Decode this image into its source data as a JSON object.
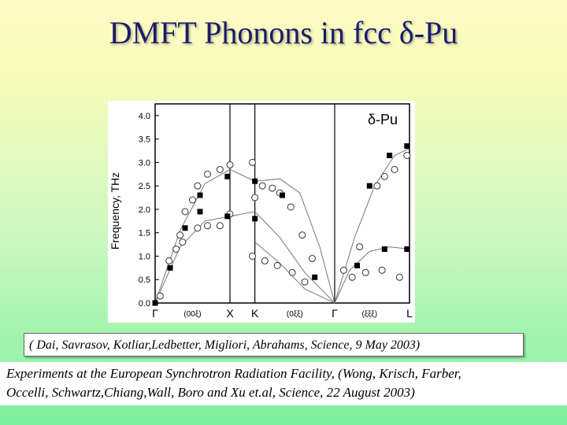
{
  "title": "DMFT  Phonons in fcc δ-Pu",
  "citation": "( Dai, Savrasov, Kotliar,Ledbetter, Migliori, Abrahams, Science, 9 May 2003)",
  "experiments": {
    "line1": "Experiments at the European Synchrotron Radiation Facility,  (Wong,  Krisch,  Farber,",
    "line2": " Occelli,  Schwartz,Chiang,Wall, Boro and  Xu et.al, Science, 22 August 2003)"
  },
  "chart_data": {
    "type": "scatter",
    "ylabel": "Frequency, THz",
    "ylim": [
      0,
      4.25
    ],
    "yticks": [
      "0.0",
      "0.5",
      "1.0",
      "1.5",
      "2.0",
      "2.5",
      "3.0",
      "3.5",
      "4.0"
    ],
    "legend_label": "δ-Pu",
    "xlim": [
      0,
      5.1
    ],
    "path_points": [
      {
        "label": "Γ",
        "x": 0.0
      },
      {
        "label": "X",
        "x": 1.5
      },
      {
        "label": "K",
        "x": 2.0
      },
      {
        "label": "Γ",
        "x": 3.6
      },
      {
        "label": "L",
        "x": 5.1
      }
    ],
    "direction_labels": [
      {
        "label": "(00ξ)",
        "x": 0.75
      },
      {
        "label": "(0ξξ)",
        "x": 2.8
      },
      {
        "label": "(ξξξ)",
        "x": 4.3
      }
    ],
    "vertical_lines_x": [
      1.5,
      2.0,
      3.6
    ],
    "series": [
      {
        "marker": "circle-open",
        "points": [
          [
            0.1,
            0.15
          ],
          [
            0.28,
            0.9
          ],
          [
            0.42,
            1.15
          ],
          [
            0.5,
            1.45
          ],
          [
            0.6,
            1.95
          ],
          [
            0.75,
            2.2
          ],
          [
            0.85,
            2.5
          ],
          [
            1.05,
            2.75
          ],
          [
            1.3,
            2.85
          ],
          [
            1.5,
            2.95
          ],
          [
            0.55,
            1.3
          ],
          [
            0.85,
            1.6
          ],
          [
            1.05,
            1.65
          ],
          [
            1.3,
            1.65
          ],
          [
            1.5,
            1.9
          ],
          [
            2.0,
            2.25
          ],
          [
            2.15,
            2.5
          ],
          [
            2.35,
            2.45
          ],
          [
            2.5,
            2.35
          ],
          [
            2.72,
            2.05
          ],
          [
            2.95,
            1.45
          ],
          [
            3.15,
            0.95
          ],
          [
            1.95,
            1.0
          ],
          [
            2.2,
            0.9
          ],
          [
            2.45,
            0.8
          ],
          [
            2.75,
            0.65
          ],
          [
            3.0,
            0.45
          ],
          [
            1.95,
            3.0
          ],
          [
            3.78,
            0.7
          ],
          [
            3.95,
            0.55
          ],
          [
            4.22,
            0.65
          ],
          [
            4.55,
            0.7
          ],
          [
            4.9,
            0.55
          ],
          [
            4.1,
            1.2
          ],
          [
            4.45,
            2.5
          ],
          [
            4.6,
            2.7
          ],
          [
            4.8,
            2.85
          ],
          [
            5.05,
            3.15
          ]
        ]
      },
      {
        "marker": "square-filled",
        "points": [
          [
            0.0,
            0.0
          ],
          [
            0.3,
            0.75
          ],
          [
            0.6,
            1.6
          ],
          [
            0.9,
            2.3
          ],
          [
            1.45,
            2.7
          ],
          [
            2.0,
            2.6
          ],
          [
            2.55,
            2.3
          ],
          [
            3.2,
            0.55
          ],
          [
            0.9,
            1.95
          ],
          [
            1.45,
            1.85
          ],
          [
            2.0,
            1.8
          ],
          [
            4.05,
            0.8
          ],
          [
            4.6,
            1.15
          ],
          [
            5.05,
            1.15
          ],
          [
            4.3,
            2.5
          ],
          [
            4.7,
            3.15
          ],
          [
            5.05,
            3.35
          ]
        ]
      }
    ],
    "curves": [
      [
        [
          0.0,
          0.0
        ],
        [
          0.5,
          1.55
        ],
        [
          1.0,
          2.55
        ],
        [
          1.5,
          2.85
        ],
        [
          2.0,
          2.6
        ],
        [
          2.5,
          2.65
        ],
        [
          2.9,
          2.35
        ],
        [
          3.3,
          1.2
        ],
        [
          3.6,
          0.0
        ]
      ],
      [
        [
          0.0,
          0.0
        ],
        [
          0.5,
          1.2
        ],
        [
          1.0,
          1.75
        ],
        [
          1.5,
          1.85
        ],
        [
          2.0,
          1.95
        ],
        [
          2.5,
          1.4
        ],
        [
          3.0,
          0.65
        ],
        [
          3.6,
          0.0
        ]
      ],
      [
        [
          2.0,
          1.3
        ],
        [
          2.5,
          0.85
        ],
        [
          3.0,
          0.3
        ],
        [
          3.6,
          0.0
        ]
      ],
      [
        [
          3.6,
          0.0
        ],
        [
          3.9,
          0.7
        ],
        [
          4.3,
          1.1
        ],
        [
          4.7,
          1.2
        ],
        [
          5.1,
          1.15
        ]
      ],
      [
        [
          3.6,
          0.0
        ],
        [
          4.0,
          1.4
        ],
        [
          4.4,
          2.5
        ],
        [
          4.8,
          3.15
        ],
        [
          5.1,
          3.3
        ]
      ]
    ]
  }
}
